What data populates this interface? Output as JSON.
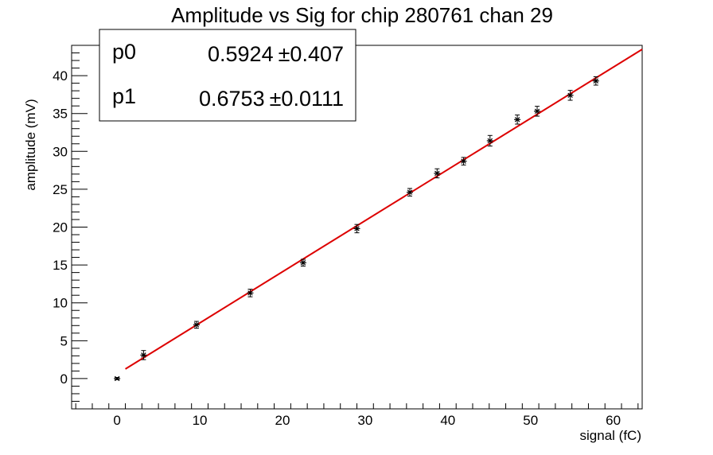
{
  "chart_data": {
    "type": "scatter",
    "title": "Amplitude vs Sig for chip 280761 chan 29",
    "xlabel": "signal (fC)",
    "ylabel": "amplitude (mV)",
    "xlim": [
      -5.5,
      63.5
    ],
    "ylim": [
      -4,
      44
    ],
    "x_ticks": [
      0,
      10,
      20,
      30,
      40,
      50,
      60
    ],
    "y_ticks": [
      0,
      5,
      10,
      15,
      20,
      25,
      30,
      35,
      40
    ],
    "grid": false,
    "series": [
      {
        "points": [
          {
            "x": 0.0,
            "y": 0.0,
            "err": 0.15
          },
          {
            "x": 3.2,
            "y": 3.1,
            "err": 0.6
          },
          {
            "x": 9.6,
            "y": 7.1,
            "err": 0.45
          },
          {
            "x": 16.1,
            "y": 11.3,
            "err": 0.5
          },
          {
            "x": 22.5,
            "y": 15.3,
            "err": 0.45
          },
          {
            "x": 29.0,
            "y": 19.8,
            "err": 0.55
          },
          {
            "x": 35.4,
            "y": 24.6,
            "err": 0.5
          },
          {
            "x": 38.7,
            "y": 27.1,
            "err": 0.6
          },
          {
            "x": 41.9,
            "y": 28.7,
            "err": 0.5
          },
          {
            "x": 45.1,
            "y": 31.4,
            "err": 0.7
          },
          {
            "x": 48.4,
            "y": 34.2,
            "err": 0.6
          },
          {
            "x": 50.8,
            "y": 35.3,
            "err": 0.65
          },
          {
            "x": 54.8,
            "y": 37.4,
            "err": 0.65
          },
          {
            "x": 57.9,
            "y": 39.3,
            "err": 0.55
          }
        ],
        "color": "#000000"
      }
    ],
    "fit": {
      "color": "#dd0000",
      "x_range": [
        1.0,
        63.5
      ],
      "p0": 0.5924,
      "p1": 0.6753
    },
    "stats": [
      {
        "name": "p0",
        "value": "0.5924",
        "error": "0.407"
      },
      {
        "name": "p1",
        "value": "0.6753",
        "error": "0.0111"
      }
    ],
    "stats_pm": "±"
  }
}
